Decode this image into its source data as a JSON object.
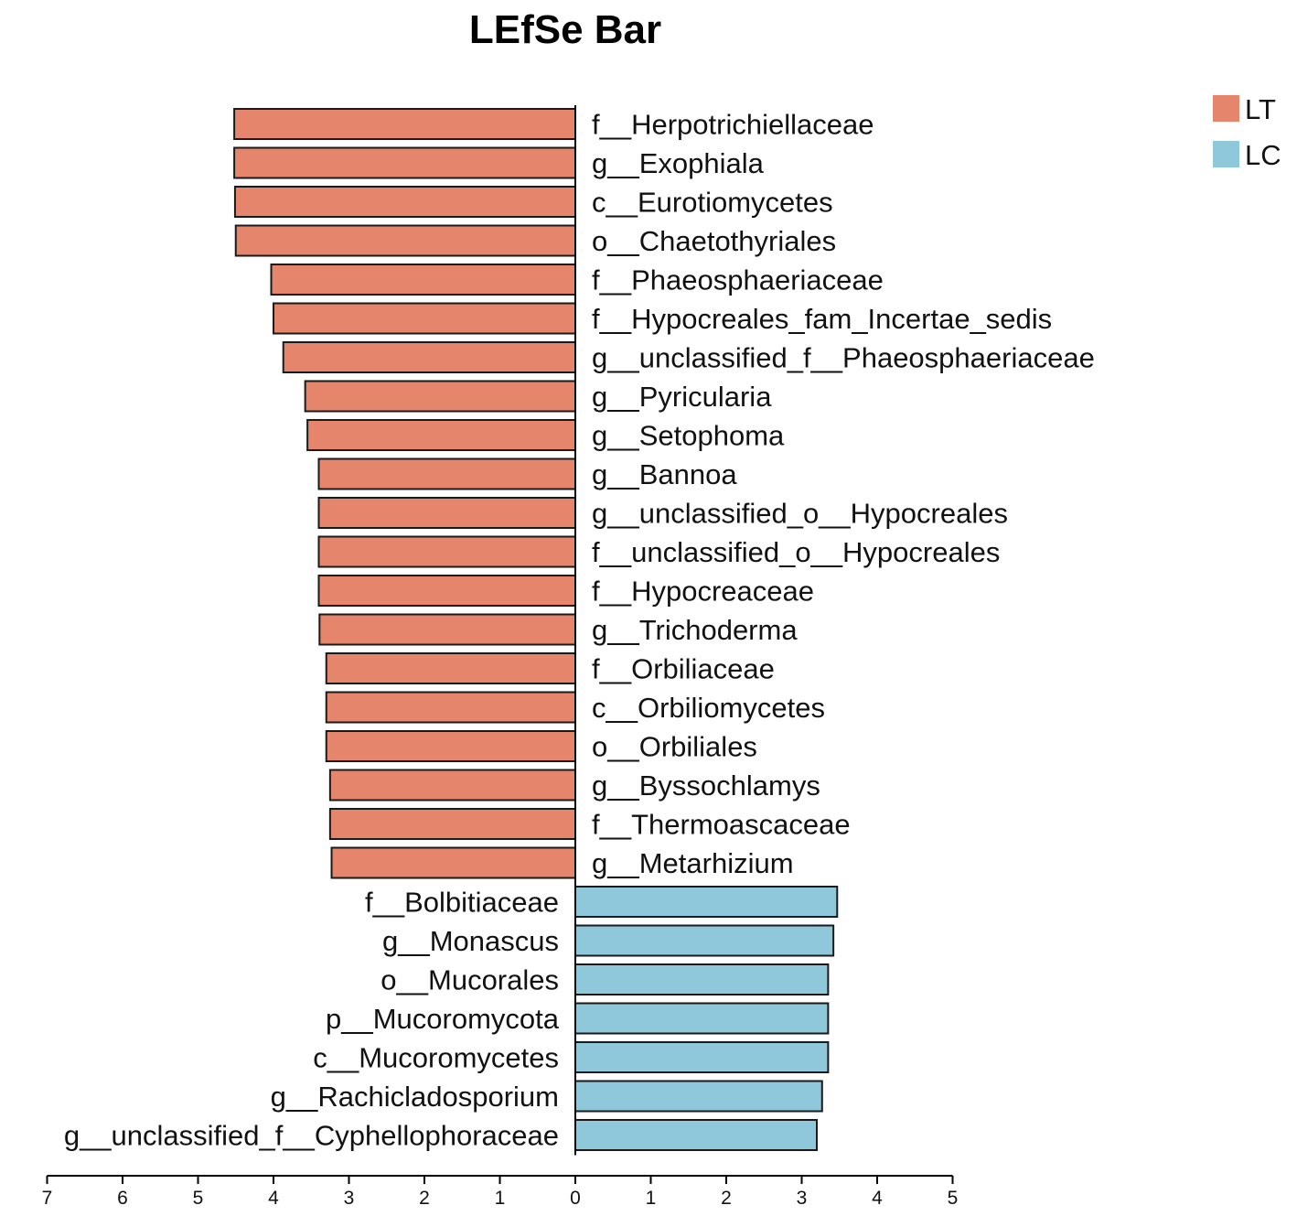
{
  "chart_data": {
    "type": "bar",
    "orientation": "horizontal",
    "title": "LEfSe Bar",
    "xlabel": "",
    "ylabel": "",
    "xlim": [
      -7,
      5
    ],
    "x_ticks": [
      "7",
      "6",
      "5",
      "4",
      "3",
      "2",
      "1",
      "0",
      "1",
      "2",
      "3",
      "4",
      "5"
    ],
    "legend": {
      "position": "top-right",
      "entries": [
        {
          "name": "LT",
          "color": "#e5866c"
        },
        {
          "name": "LC",
          "color": "#8fc8da"
        }
      ]
    },
    "series": [
      {
        "name": "LT",
        "color": "#e5866c",
        "categories": [
          "f__Herpotrichiellaceae",
          "g__Exophiala",
          "c__Eurotiomycetes",
          "o__Chaetothyriales",
          "f__Phaeosphaeriaceae",
          "f__Hypocreales_fam_Incertae_sedis",
          "g__unclassified_f__Phaeosphaeriaceae",
          "g__Pyricularia",
          "g__Setophoma",
          "g__Bannoa",
          "g__unclassified_o__Hypocreales",
          "f__unclassified_o__Hypocreales",
          "f__Hypocreaceae",
          "g__Trichoderma",
          "f__Orbiliaceae",
          "c__Orbiliomycetes",
          "o__Orbiliales",
          "g__Byssochlamys",
          "f__Thermoascaceae",
          "g__Metarhizium"
        ],
        "values": [
          4.52,
          4.52,
          4.51,
          4.5,
          4.03,
          4.0,
          3.87,
          3.58,
          3.55,
          3.4,
          3.4,
          3.4,
          3.4,
          3.39,
          3.3,
          3.3,
          3.3,
          3.25,
          3.25,
          3.23
        ]
      },
      {
        "name": "LC",
        "color": "#8fc8da",
        "categories": [
          "f__Bolbitiaceae",
          "g__Monascus",
          "o__Mucorales",
          "p__Mucoromycota",
          "c__Mucoromycetes",
          "g__Rachicladosporium",
          "g__unclassified_f__Cyphellophoraceae"
        ],
        "values": [
          3.47,
          3.42,
          3.35,
          3.35,
          3.35,
          3.27,
          3.2
        ]
      }
    ]
  }
}
